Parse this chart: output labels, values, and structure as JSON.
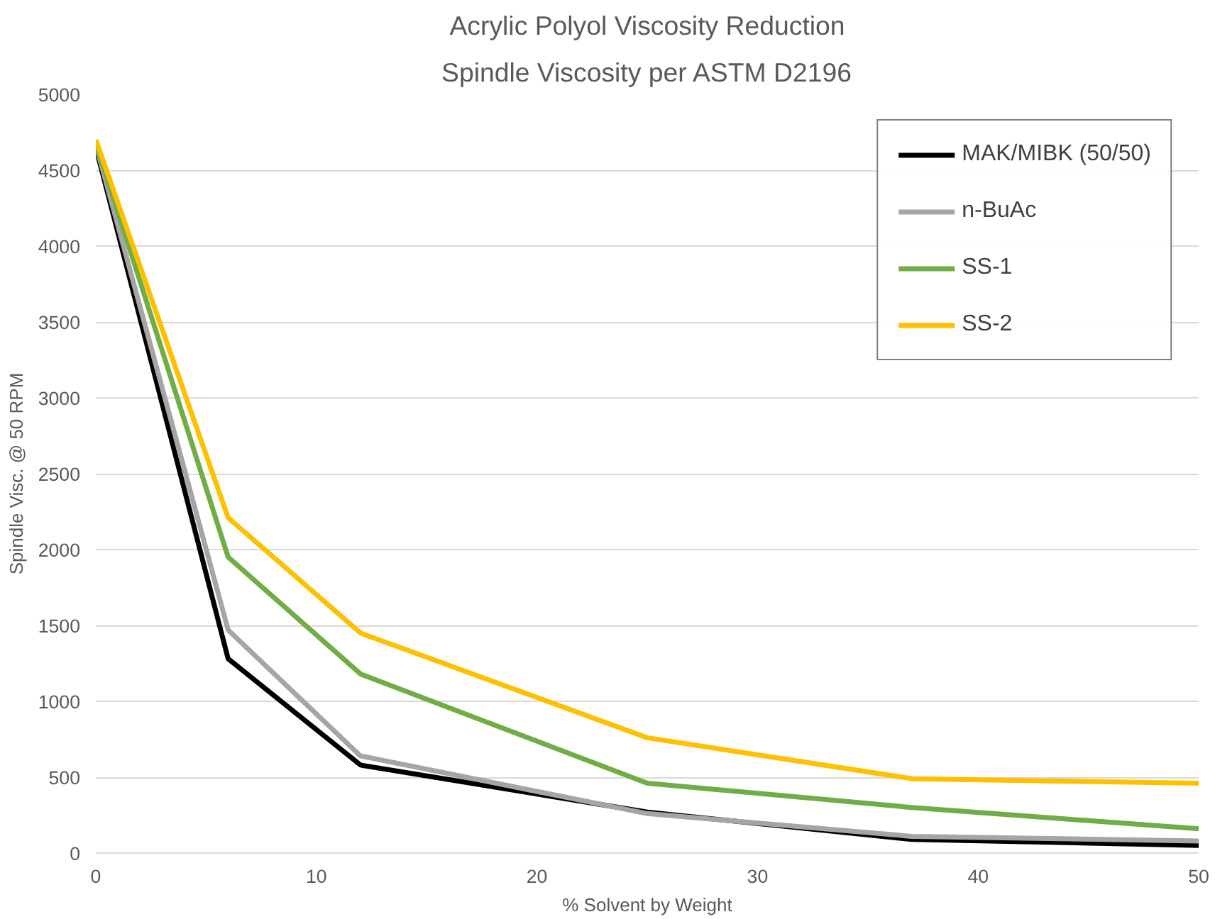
{
  "chart_data": {
    "type": "line",
    "title": "Acrylic Polyol Viscosity Reduction",
    "subtitle": "Spindle Viscosity per ASTM D2196",
    "xlabel": "% Solvent by Weight",
    "ylabel": "Spindle Visc. @ 50 RPM",
    "x": [
      0,
      6,
      12,
      25,
      37,
      50
    ],
    "series": [
      {
        "name": "MAK/MIBK (50/50)",
        "color": "#000000",
        "values": [
          4650,
          1280,
          580,
          270,
          90,
          50
        ]
      },
      {
        "name": "n-BuAc",
        "color": "#a5a5a5",
        "values": [
          4670,
          1470,
          640,
          260,
          110,
          80
        ]
      },
      {
        "name": "SS-1",
        "color": "#70ad47",
        "values": [
          4680,
          1950,
          1180,
          460,
          300,
          160
        ]
      },
      {
        "name": "SS-2",
        "color": "#ffc000",
        "values": [
          4700,
          2210,
          1450,
          760,
          490,
          460
        ]
      }
    ],
    "xlim": [
      0,
      50
    ],
    "ylim": [
      0,
      5000
    ],
    "xticks": [
      0,
      10,
      20,
      30,
      40,
      50
    ],
    "yticks": [
      0,
      500,
      1000,
      1500,
      2000,
      2500,
      3000,
      3500,
      4000,
      4500,
      5000
    ],
    "grid": "y",
    "legend": "top right",
    "marker": "none",
    "line_style": "solid"
  }
}
